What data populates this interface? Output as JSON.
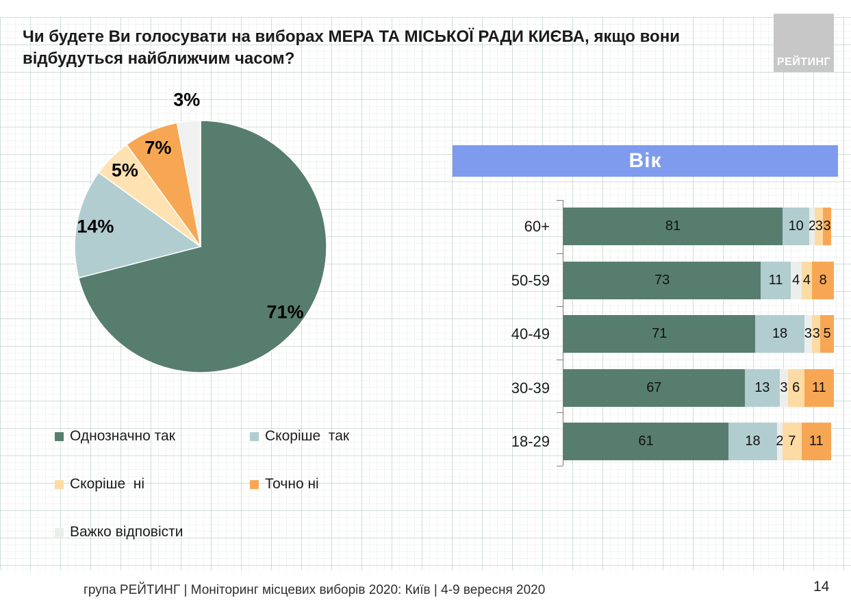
{
  "title": "Чи будете Ви голосувати на виборах МЕРА ТА МІСЬКОЇ РАДИ КИЄВА, якщо вони відбудуться найближчим часом?",
  "logo": {
    "text": "РЕЙТИНГ"
  },
  "footer": {
    "text": "група РЕЙТИНГ | Моніторинг місцевих виборів 2020: Київ | 4-9 вересня 2020",
    "page_number": "14"
  },
  "colors": {
    "definitely_yes": "#577D6F",
    "rather_yes": "#B2CDD0",
    "rather_no": "#FCDBA4",
    "definitely_no": "#F7A754",
    "hard_to_say": "#ECEEEC",
    "age_banner": "#7E9BEE",
    "logo_bg": "#C7C7C7"
  },
  "legend": {
    "items": [
      {
        "label": "Однозначно так",
        "color": "#577D6F"
      },
      {
        "label": "Скоріше  так",
        "color": "#B2CDD0"
      },
      {
        "label": "Скоріше  ні",
        "color": "#FCDBA4"
      },
      {
        "label": "Точно ні",
        "color": "#F7A754"
      },
      {
        "label": "Важко відповісти",
        "color": "#ECEEEC"
      }
    ]
  },
  "chart_data": [
    {
      "type": "pie",
      "title": "",
      "labels": [
        "Однозначно так",
        "Скоріше так",
        "Скоріше ні",
        "Точно ні",
        "Важко відповісти"
      ],
      "values": [
        71,
        14,
        5,
        7,
        3
      ],
      "value_labels": [
        "71%",
        "14%",
        "5%",
        "7%",
        "3%"
      ],
      "colors": [
        "#577D6F",
        "#B2CDD0",
        "#FFE2B2",
        "#F7A754",
        "#F0F1F0"
      ],
      "start_angle_deg": 0,
      "direction": "clockwise",
      "legend_position": "bottom-left"
    },
    {
      "type": "bar",
      "subtype": "horizontal-stacked",
      "title": "Вік",
      "categories": [
        "60+",
        "50-59",
        "40-49",
        "30-39",
        "18-29"
      ],
      "series": [
        {
          "name": "Однозначно так",
          "color": "#577D6F",
          "values": [
            81,
            73,
            71,
            67,
            61
          ]
        },
        {
          "name": "Скоріше так",
          "color": "#B2CDD0",
          "values": [
            10,
            11,
            18,
            13,
            18
          ]
        },
        {
          "name": "Важко відповісти",
          "color": "#ECEEEC",
          "values": [
            2,
            4,
            3,
            3,
            2
          ]
        },
        {
          "name": "Скоріше ні",
          "color": "#FCDBA4",
          "values": [
            3,
            4,
            3,
            6,
            7
          ]
        },
        {
          "name": "Точно ні",
          "color": "#F7A754",
          "values": [
            3,
            8,
            5,
            11,
            11
          ]
        }
      ],
      "xlim": [
        0,
        100
      ],
      "value_labels_shown": true,
      "grid": false
    }
  ]
}
